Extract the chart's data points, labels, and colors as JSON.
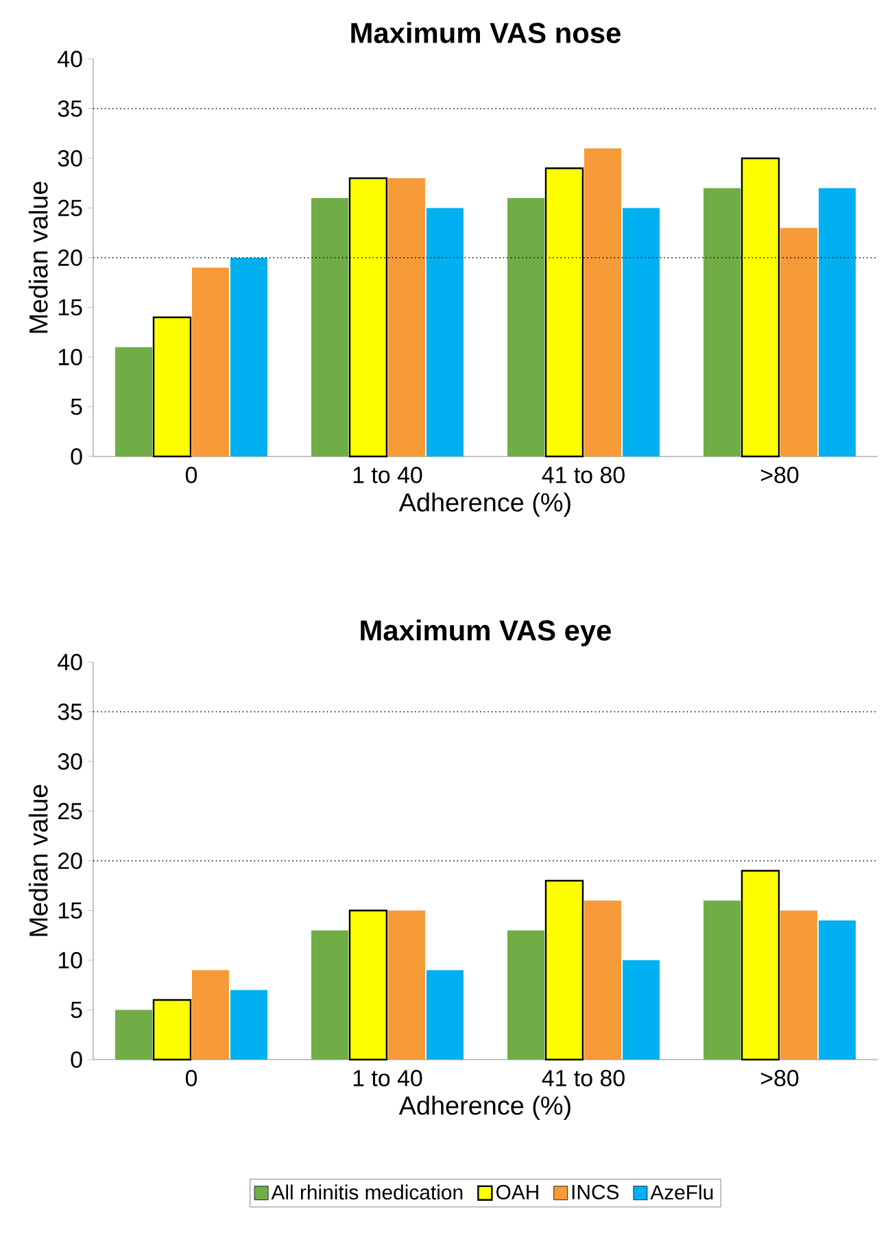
{
  "chart_data": [
    {
      "type": "bar",
      "title": "Maximum VAS nose",
      "xlabel": "Adherence (%)",
      "ylabel": "Median value",
      "categories": [
        "0",
        "1 to 40",
        "41 to 80",
        ">80"
      ],
      "ylim": [
        0,
        40
      ],
      "yticks": [
        0,
        5,
        10,
        15,
        20,
        25,
        30,
        35,
        40
      ],
      "grid": false,
      "ref_lines": [
        {
          "axis": "y",
          "value": 20,
          "color": "#000000",
          "line_style": "dotted"
        },
        {
          "axis": "y",
          "value": 35,
          "color": "#000000",
          "line_style": "dotted"
        }
      ],
      "series": [
        {
          "color": "#70ad47",
          "values": [
            11,
            26,
            26,
            27
          ]
        },
        {
          "color": "#ffff00",
          "values": [
            14,
            28,
            29,
            30
          ]
        },
        {
          "color": "#f79a38",
          "values": [
            19,
            28,
            31,
            23
          ]
        },
        {
          "color": "#00b0f0",
          "values": [
            20,
            25,
            25,
            27
          ]
        }
      ]
    },
    {
      "type": "bar",
      "title": "Maximum VAS eye",
      "xlabel": "Adherence (%)",
      "ylabel": "Median value",
      "categories": [
        "0",
        "1 to 40",
        "41 to 80",
        ">80"
      ],
      "ylim": [
        0,
        40
      ],
      "yticks": [
        0,
        5,
        10,
        15,
        20,
        25,
        30,
        35,
        40
      ],
      "grid": false,
      "legend": "bottom",
      "ref_lines": [
        {
          "axis": "y",
          "value": 20,
          "color": "#000000",
          "line_style": "dotted"
        },
        {
          "axis": "y",
          "value": 35,
          "color": "#000000",
          "line_style": "dotted"
        }
      ],
      "series": [
        {
          "name": "All rhinitis medication",
          "color": "#70ad47",
          "values": [
            5,
            13,
            13,
            16
          ]
        },
        {
          "name": "OAH",
          "color": "#ffff00",
          "values": [
            6,
            15,
            18,
            19
          ]
        },
        {
          "name": "INCS",
          "color": "#f79a38",
          "values": [
            9,
            15,
            16,
            15
          ]
        },
        {
          "name": "AzeFlu",
          "color": "#00b0f0",
          "values": [
            7,
            9,
            10,
            14
          ]
        }
      ]
    }
  ]
}
